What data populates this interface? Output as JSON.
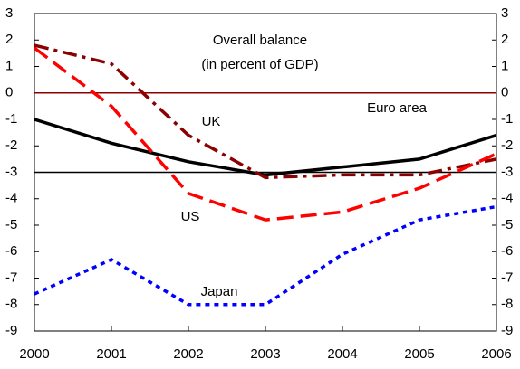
{
  "chart_data": {
    "type": "line",
    "title": "Overall balance",
    "subtitle": "(in percent of GDP)",
    "x": [
      2000,
      2001,
      2002,
      2003,
      2004,
      2005,
      2006
    ],
    "series": [
      {
        "name": "Euro area",
        "color": "#000000",
        "dash": "solid",
        "values": [
          -1.0,
          -1.9,
          -2.6,
          -3.1,
          -2.8,
          -2.5,
          -1.6
        ]
      },
      {
        "name": "UK",
        "color": "#8b0000",
        "dash": "dashdot",
        "values": [
          1.8,
          1.1,
          -1.6,
          -3.2,
          -3.1,
          -3.1,
          -2.5
        ]
      },
      {
        "name": "US",
        "color": "#ff0000",
        "dash": "dashed",
        "values": [
          1.7,
          -0.5,
          -3.8,
          -4.8,
          -4.5,
          -3.6,
          -2.3
        ]
      },
      {
        "name": "Japan",
        "color": "#0000ff",
        "dash": "dotted",
        "values": [
          -7.6,
          -6.3,
          -8.0,
          -8.0,
          -6.1,
          -4.8,
          -4.3
        ]
      }
    ],
    "xlim": [
      2000,
      2006
    ],
    "xticks": [
      2000,
      2001,
      2002,
      2003,
      2004,
      2005,
      2006
    ],
    "ylim": [
      -9,
      3
    ],
    "yticks": [
      -9,
      -8,
      -7,
      -6,
      -5,
      -4,
      -3,
      -2,
      -1,
      0,
      1,
      2,
      3
    ],
    "y2lim": [
      -9,
      3
    ],
    "y2ticks": [
      -9,
      -8,
      -7,
      -6,
      -5,
      -4,
      -3,
      -2,
      -1,
      0,
      1,
      2,
      3
    ],
    "reference_lines": [
      {
        "value": 0,
        "color": "#8b0000"
      },
      {
        "value": -3,
        "color": "#000000"
      }
    ],
    "grid": false
  }
}
